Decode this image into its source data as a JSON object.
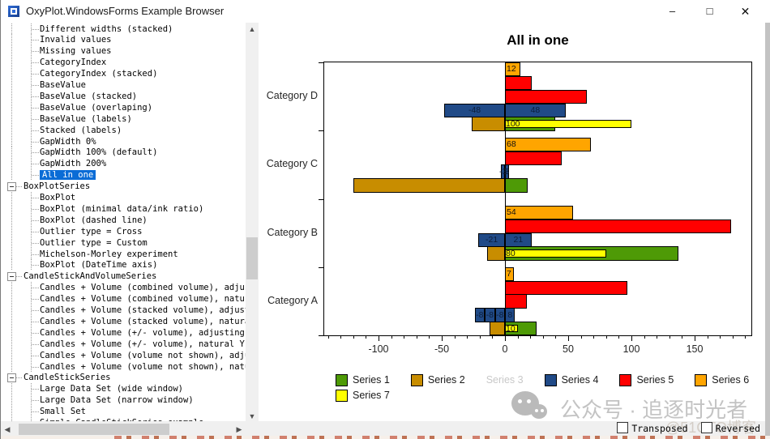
{
  "window": {
    "title": "OxyPlot.WindowsForms Example Browser",
    "minimize_glyph": "–",
    "maximize_glyph": "□",
    "close_glyph": "✕"
  },
  "tree": {
    "items": [
      {
        "label": "Different widths (stacked)",
        "kind": "leaf"
      },
      {
        "label": "Invalid values",
        "kind": "leaf"
      },
      {
        "label": "Missing values",
        "kind": "leaf"
      },
      {
        "label": "CategoryIndex",
        "kind": "leaf"
      },
      {
        "label": "CategoryIndex (stacked)",
        "kind": "leaf"
      },
      {
        "label": "BaseValue",
        "kind": "leaf"
      },
      {
        "label": "BaseValue (stacked)",
        "kind": "leaf"
      },
      {
        "label": "BaseValue (overlaping)",
        "kind": "leaf"
      },
      {
        "label": "BaseValue (labels)",
        "kind": "leaf"
      },
      {
        "label": "Stacked (labels)",
        "kind": "leaf"
      },
      {
        "label": "GapWidth 0%",
        "kind": "leaf"
      },
      {
        "label": "GapWidth 100% (default)",
        "kind": "leaf"
      },
      {
        "label": "GapWidth 200%",
        "kind": "leaf"
      },
      {
        "label": "All in one",
        "kind": "leaf",
        "selected": true
      },
      {
        "label": "BoxPlotSeries",
        "kind": "parent"
      },
      {
        "label": "BoxPlot",
        "kind": "leaf"
      },
      {
        "label": "BoxPlot (minimal data/ink ratio)",
        "kind": "leaf"
      },
      {
        "label": "BoxPlot (dashed line)",
        "kind": "leaf"
      },
      {
        "label": "Outlier type = Cross",
        "kind": "leaf"
      },
      {
        "label": "Outlier type = Custom",
        "kind": "leaf"
      },
      {
        "label": "Michelson-Morley experiment",
        "kind": "leaf"
      },
      {
        "label": "BoxPlot (DateTime axis)",
        "kind": "leaf"
      },
      {
        "label": "CandleStickAndVolumeSeries",
        "kind": "parent"
      },
      {
        "label": "Candles + Volume (combined volume), adjusti",
        "kind": "leaf"
      },
      {
        "label": "Candles + Volume (combined volume), natural",
        "kind": "leaf"
      },
      {
        "label": "Candles + Volume (stacked volume), adjustin",
        "kind": "leaf"
      },
      {
        "label": "Candles + Volume (stacked volume), natural",
        "kind": "leaf"
      },
      {
        "label": "Candles + Volume (+/- volume), adjusting Y-",
        "kind": "leaf"
      },
      {
        "label": "Candles + Volume (+/- volume), natural Y-ax",
        "kind": "leaf"
      },
      {
        "label": "Candles + Volume (volume not shown), adjus",
        "kind": "leaf"
      },
      {
        "label": "Candles + Volume (volume not shown), natur",
        "kind": "leaf"
      },
      {
        "label": "CandleStickSeries",
        "kind": "parent"
      },
      {
        "label": "Large Data Set (wide window)",
        "kind": "leaf"
      },
      {
        "label": "Large Data Set (narrow window)",
        "kind": "leaf"
      },
      {
        "label": "Small Set",
        "kind": "leaf"
      },
      {
        "label": "Simple CandleStickSeries example",
        "kind": "leaf"
      }
    ]
  },
  "chart_data": {
    "type": "bar",
    "orientation": "horizontal",
    "title": "All in one",
    "categories": [
      "Category A",
      "Category B",
      "Category C",
      "Category D"
    ],
    "value_axis": {
      "major_ticks": [
        -100,
        -50,
        0,
        50,
        100,
        150
      ],
      "minor_min": -140,
      "minor_max": 190,
      "minor_step": 10,
      "extra_gridline": 0
    },
    "legend": [
      {
        "name": "Series 1",
        "color": "#4E9A06",
        "hidden": false
      },
      {
        "name": "Series 2",
        "color": "#C88D00",
        "hidden": false
      },
      {
        "name": "Series 3",
        "color": "#CC0000",
        "hidden": true
      },
      {
        "name": "Series 4",
        "color": "#204A87",
        "hidden": false
      },
      {
        "name": "Series 5",
        "color": "#FF0000",
        "hidden": false
      },
      {
        "name": "Series 6",
        "color": "#FFA500",
        "hidden": false
      },
      {
        "name": "Series 7",
        "color": "#FFFF00",
        "hidden": false
      }
    ],
    "series": [
      {
        "name": "Series 1",
        "stacked": true,
        "values_by_category": {
          "Category A": 25,
          "Category B": 137,
          "Category C": 18,
          "Category D": 40
        }
      },
      {
        "name": "Series 2",
        "stacked": true,
        "values_by_category": {
          "Category A": -12,
          "Category B": -14,
          "Category C": -120,
          "Category D": -26
        }
      },
      {
        "name": "Series 3",
        "hidden": true,
        "values_by_category": {}
      },
      {
        "name": "Series 4",
        "stacked": true,
        "label_placement": "middle",
        "values_by_category": {
          "Category A": [
            -8,
            -8,
            -8,
            8
          ],
          "Category B": [
            -21,
            21
          ],
          "Category C": [
            -3,
            3
          ],
          "Category D": [
            -48,
            48
          ]
        }
      },
      {
        "name": "Series 5",
        "stacked": false,
        "values_by_category": {
          "Category A": [
            97,
            17
          ],
          "Category B": [
            179
          ],
          "Category C": [
            45
          ],
          "Category D": [
            21,
            65
          ]
        }
      },
      {
        "name": "Series 6",
        "stacked": false,
        "label_placement": "base",
        "values_by_category": {
          "Category A": 7,
          "Category B": 54,
          "Category C": 68,
          "Category D": 12
        }
      },
      {
        "name": "Series 7",
        "stacked": true,
        "label_placement": "inside",
        "values_by_category": {
          "Category A": 10,
          "Category B": 80,
          "Category D": 100
        }
      }
    ],
    "render_rows": [
      {
        "category": "Category D",
        "rows": [
          {
            "series": "Series 6",
            "segments": [
              [
                0,
                12
              ]
            ],
            "labels": [
              "12"
            ],
            "placement": "base"
          },
          {
            "series": "Series 5",
            "segments": [
              [
                0,
                21
              ]
            ]
          },
          {
            "series": "Series 5",
            "segments": [
              [
                0,
                65
              ]
            ]
          },
          {
            "series": "Series 4",
            "segments": [
              [
                -48,
                0
              ],
              [
                0,
                48
              ]
            ],
            "labels": [
              "-48",
              "48"
            ],
            "placement": "middle"
          },
          {
            "stack": [
              {
                "series": "Series 2",
                "segment": [
                  -26,
                  0
                ]
              },
              {
                "series": "Series 1",
                "segment": [
                  0,
                  40
                ]
              }
            ],
            "overlay": {
              "series": "Series 7",
              "segment": [
                0,
                100
              ],
              "label": "100"
            }
          }
        ]
      },
      {
        "category": "Category C",
        "rows": [
          {
            "series": "Series 6",
            "segments": [
              [
                0,
                68
              ]
            ],
            "labels": [
              "68"
            ],
            "placement": "base"
          },
          {
            "series": "Series 5",
            "segments": [
              [
                0,
                45
              ]
            ]
          },
          {
            "series": "Series 4",
            "segments": [
              [
                -3,
                0
              ],
              [
                0,
                3
              ]
            ],
            "labels": [
              "-3",
              "3"
            ],
            "placement": "middle"
          },
          {
            "stack": [
              {
                "series": "Series 2",
                "segment": [
                  -120,
                  0
                ]
              },
              {
                "series": "Series 1",
                "segment": [
                  0,
                  18
                ]
              }
            ]
          }
        ]
      },
      {
        "category": "Category B",
        "rows": [
          {
            "series": "Series 6",
            "segments": [
              [
                0,
                54
              ]
            ],
            "labels": [
              "54"
            ],
            "placement": "base"
          },
          {
            "series": "Series 5",
            "segments": [
              [
                0,
                179
              ]
            ]
          },
          {
            "series": "Series 4",
            "segments": [
              [
                -21,
                0
              ],
              [
                0,
                21
              ]
            ],
            "labels": [
              "-21",
              "21"
            ],
            "placement": "middle"
          },
          {
            "stack": [
              {
                "series": "Series 2",
                "segment": [
                  -14,
                  0
                ]
              },
              {
                "series": "Series 1",
                "segment": [
                  0,
                  137
                ]
              }
            ],
            "overlay": {
              "series": "Series 7",
              "segment": [
                0,
                80
              ],
              "label": "80"
            }
          }
        ]
      },
      {
        "category": "Category A",
        "rows": [
          {
            "series": "Series 6",
            "segments": [
              [
                0,
                7
              ]
            ],
            "labels": [
              "7"
            ],
            "placement": "base"
          },
          {
            "series": "Series 5",
            "segments": [
              [
                0,
                97
              ]
            ]
          },
          {
            "series": "Series 5",
            "segments": [
              [
                0,
                17
              ]
            ]
          },
          {
            "series": "Series 4",
            "segments": [
              [
                -24,
                -16
              ],
              [
                -16,
                -8
              ],
              [
                -8,
                0
              ],
              [
                0,
                8
              ]
            ],
            "labels": [
              "-8",
              "-8",
              "-8",
              "8"
            ],
            "placement": "middle"
          },
          {
            "stack": [
              {
                "series": "Series 2",
                "segment": [
                  -12,
                  0
                ]
              },
              {
                "series": "Series 1",
                "segment": [
                  0,
                  25
                ]
              }
            ],
            "overlay": {
              "series": "Series 7",
              "segment": [
                0,
                10
              ],
              "label": "10"
            }
          }
        ]
      }
    ]
  },
  "footer": {
    "transposed": "Transposed",
    "reversed": "Reversed"
  },
  "watermark": {
    "text": "公众号 · 追逐时光者",
    "subtext": "@51CTO博客"
  }
}
